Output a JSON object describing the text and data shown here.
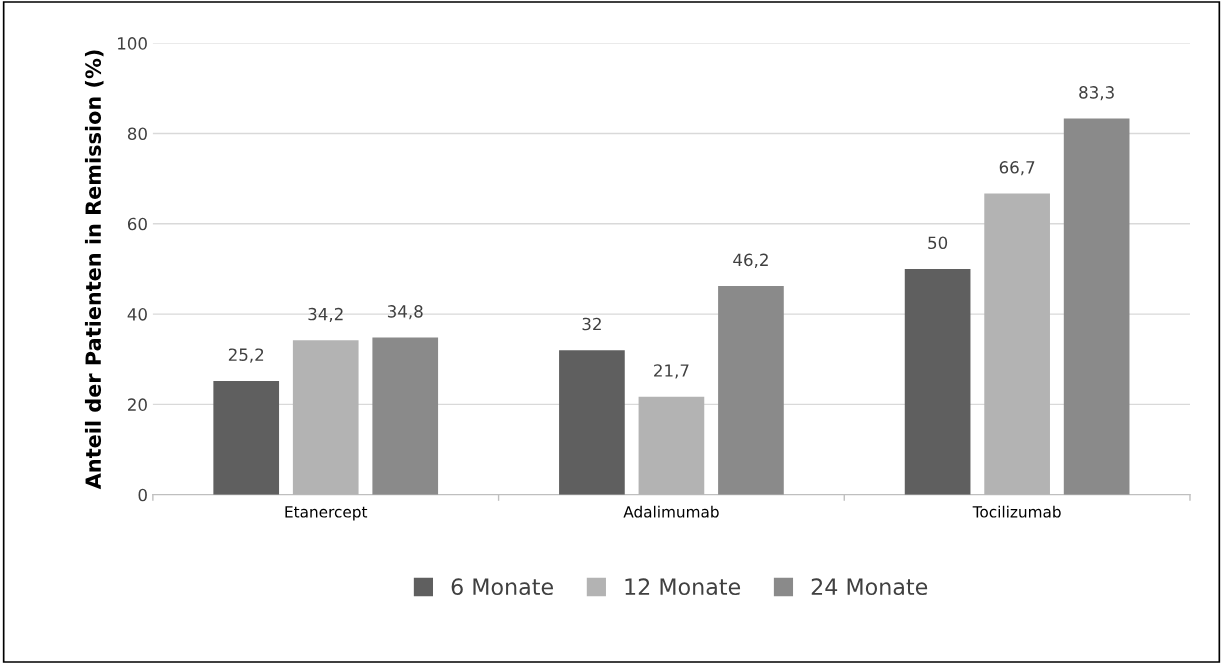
{
  "chart_data": {
    "type": "bar",
    "ylabel": "Anteil der Patienten in Remission (%)",
    "categories": [
      "Etanercept",
      "Adalimumab",
      "Tocilizumab"
    ],
    "series": [
      {
        "name": "6 Monate",
        "color": "#5f5f5f",
        "values": [
          25.2,
          32,
          50
        ],
        "value_labels": [
          "25,2",
          "32",
          "50"
        ]
      },
      {
        "name": "12 Monate",
        "color": "#b3b3b3",
        "values": [
          34.2,
          21.7,
          66.7
        ],
        "value_labels": [
          "34,2",
          "21,7",
          "66,7"
        ]
      },
      {
        "name": "24 Monate",
        "color": "#8a8a8a",
        "values": [
          34.8,
          46.2,
          83.3
        ],
        "value_labels": [
          "34,8",
          "46,2",
          "83,3"
        ]
      }
    ],
    "ylim": [
      0,
      100
    ],
    "yticks": [
      0,
      20,
      40,
      60,
      80,
      100
    ],
    "grid": "y",
    "legend": "bottom"
  }
}
